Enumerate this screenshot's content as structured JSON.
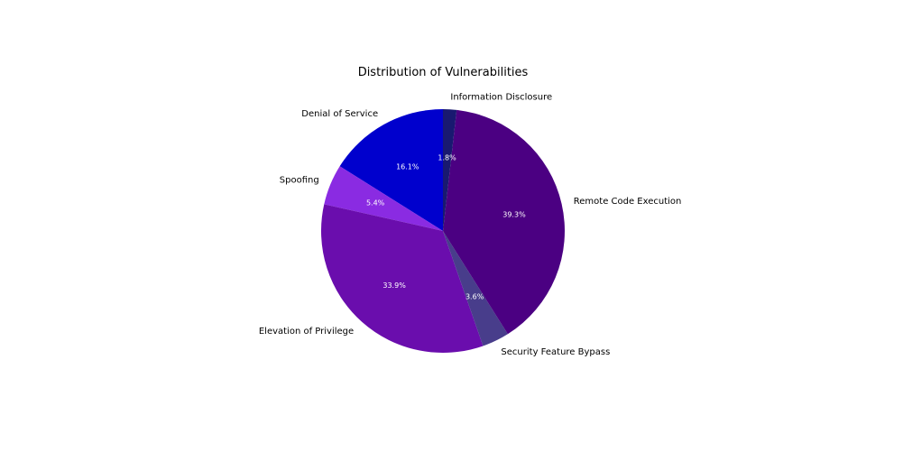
{
  "chart_data": {
    "type": "pie",
    "title": "Distribution of Vulnerabilities",
    "start_angle_deg": 90,
    "direction": "counterclockwise",
    "slices": [
      {
        "label": "Denial of Service",
        "value": 16.1,
        "pct_label": "16.1%",
        "color": "#0000CD"
      },
      {
        "label": "Spoofing",
        "value": 5.4,
        "pct_label": "5.4%",
        "color": "#8A2BE2"
      },
      {
        "label": "Elevation of Privilege",
        "value": 33.9,
        "pct_label": "33.9%",
        "color": "#6A0DAD"
      },
      {
        "label": "Security Feature Bypass",
        "value": 3.6,
        "pct_label": "3.6%",
        "color": "#483D8B"
      },
      {
        "label": "Remote Code Execution",
        "value": 39.3,
        "pct_label": "39.3%",
        "color": "#4B0082"
      },
      {
        "label": "Information Disclosure",
        "value": 1.8,
        "pct_label": "1.8%",
        "color": "#191970"
      }
    ]
  }
}
